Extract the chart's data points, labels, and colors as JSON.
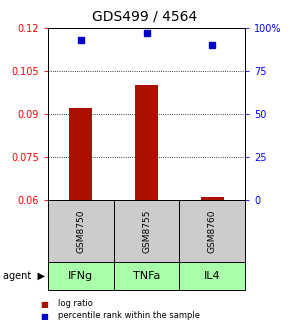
{
  "title": "GDS499 / 4564",
  "samples": [
    "GSM8750",
    "GSM8755",
    "GSM8760"
  ],
  "agents": [
    "IFNg",
    "TNFa",
    "IL4"
  ],
  "log_ratios": [
    0.092,
    0.1,
    0.061
  ],
  "percentiles": [
    93,
    97,
    90
  ],
  "ylim_left": [
    0.06,
    0.12
  ],
  "ylim_right": [
    0,
    100
  ],
  "yticks_left": [
    0.06,
    0.075,
    0.09,
    0.105,
    0.12
  ],
  "yticks_left_labels": [
    "0.06",
    "0.075",
    "0.09",
    "0.105",
    "0.12"
  ],
  "yticks_right": [
    0,
    25,
    50,
    75,
    100
  ],
  "yticks_right_labels": [
    "0",
    "25",
    "50",
    "75",
    "100%"
  ],
  "bar_color": "#aa1100",
  "dot_color": "#0000cc",
  "sample_box_color": "#cccccc",
  "agent_box_color": "#aaffaa",
  "baseline": 0.06,
  "bar_width": 0.35,
  "title_fontsize": 10,
  "tick_fontsize": 7,
  "legend_fontsize": 6.5,
  "agent_fontsize": 8,
  "sample_fontsize": 6.5
}
